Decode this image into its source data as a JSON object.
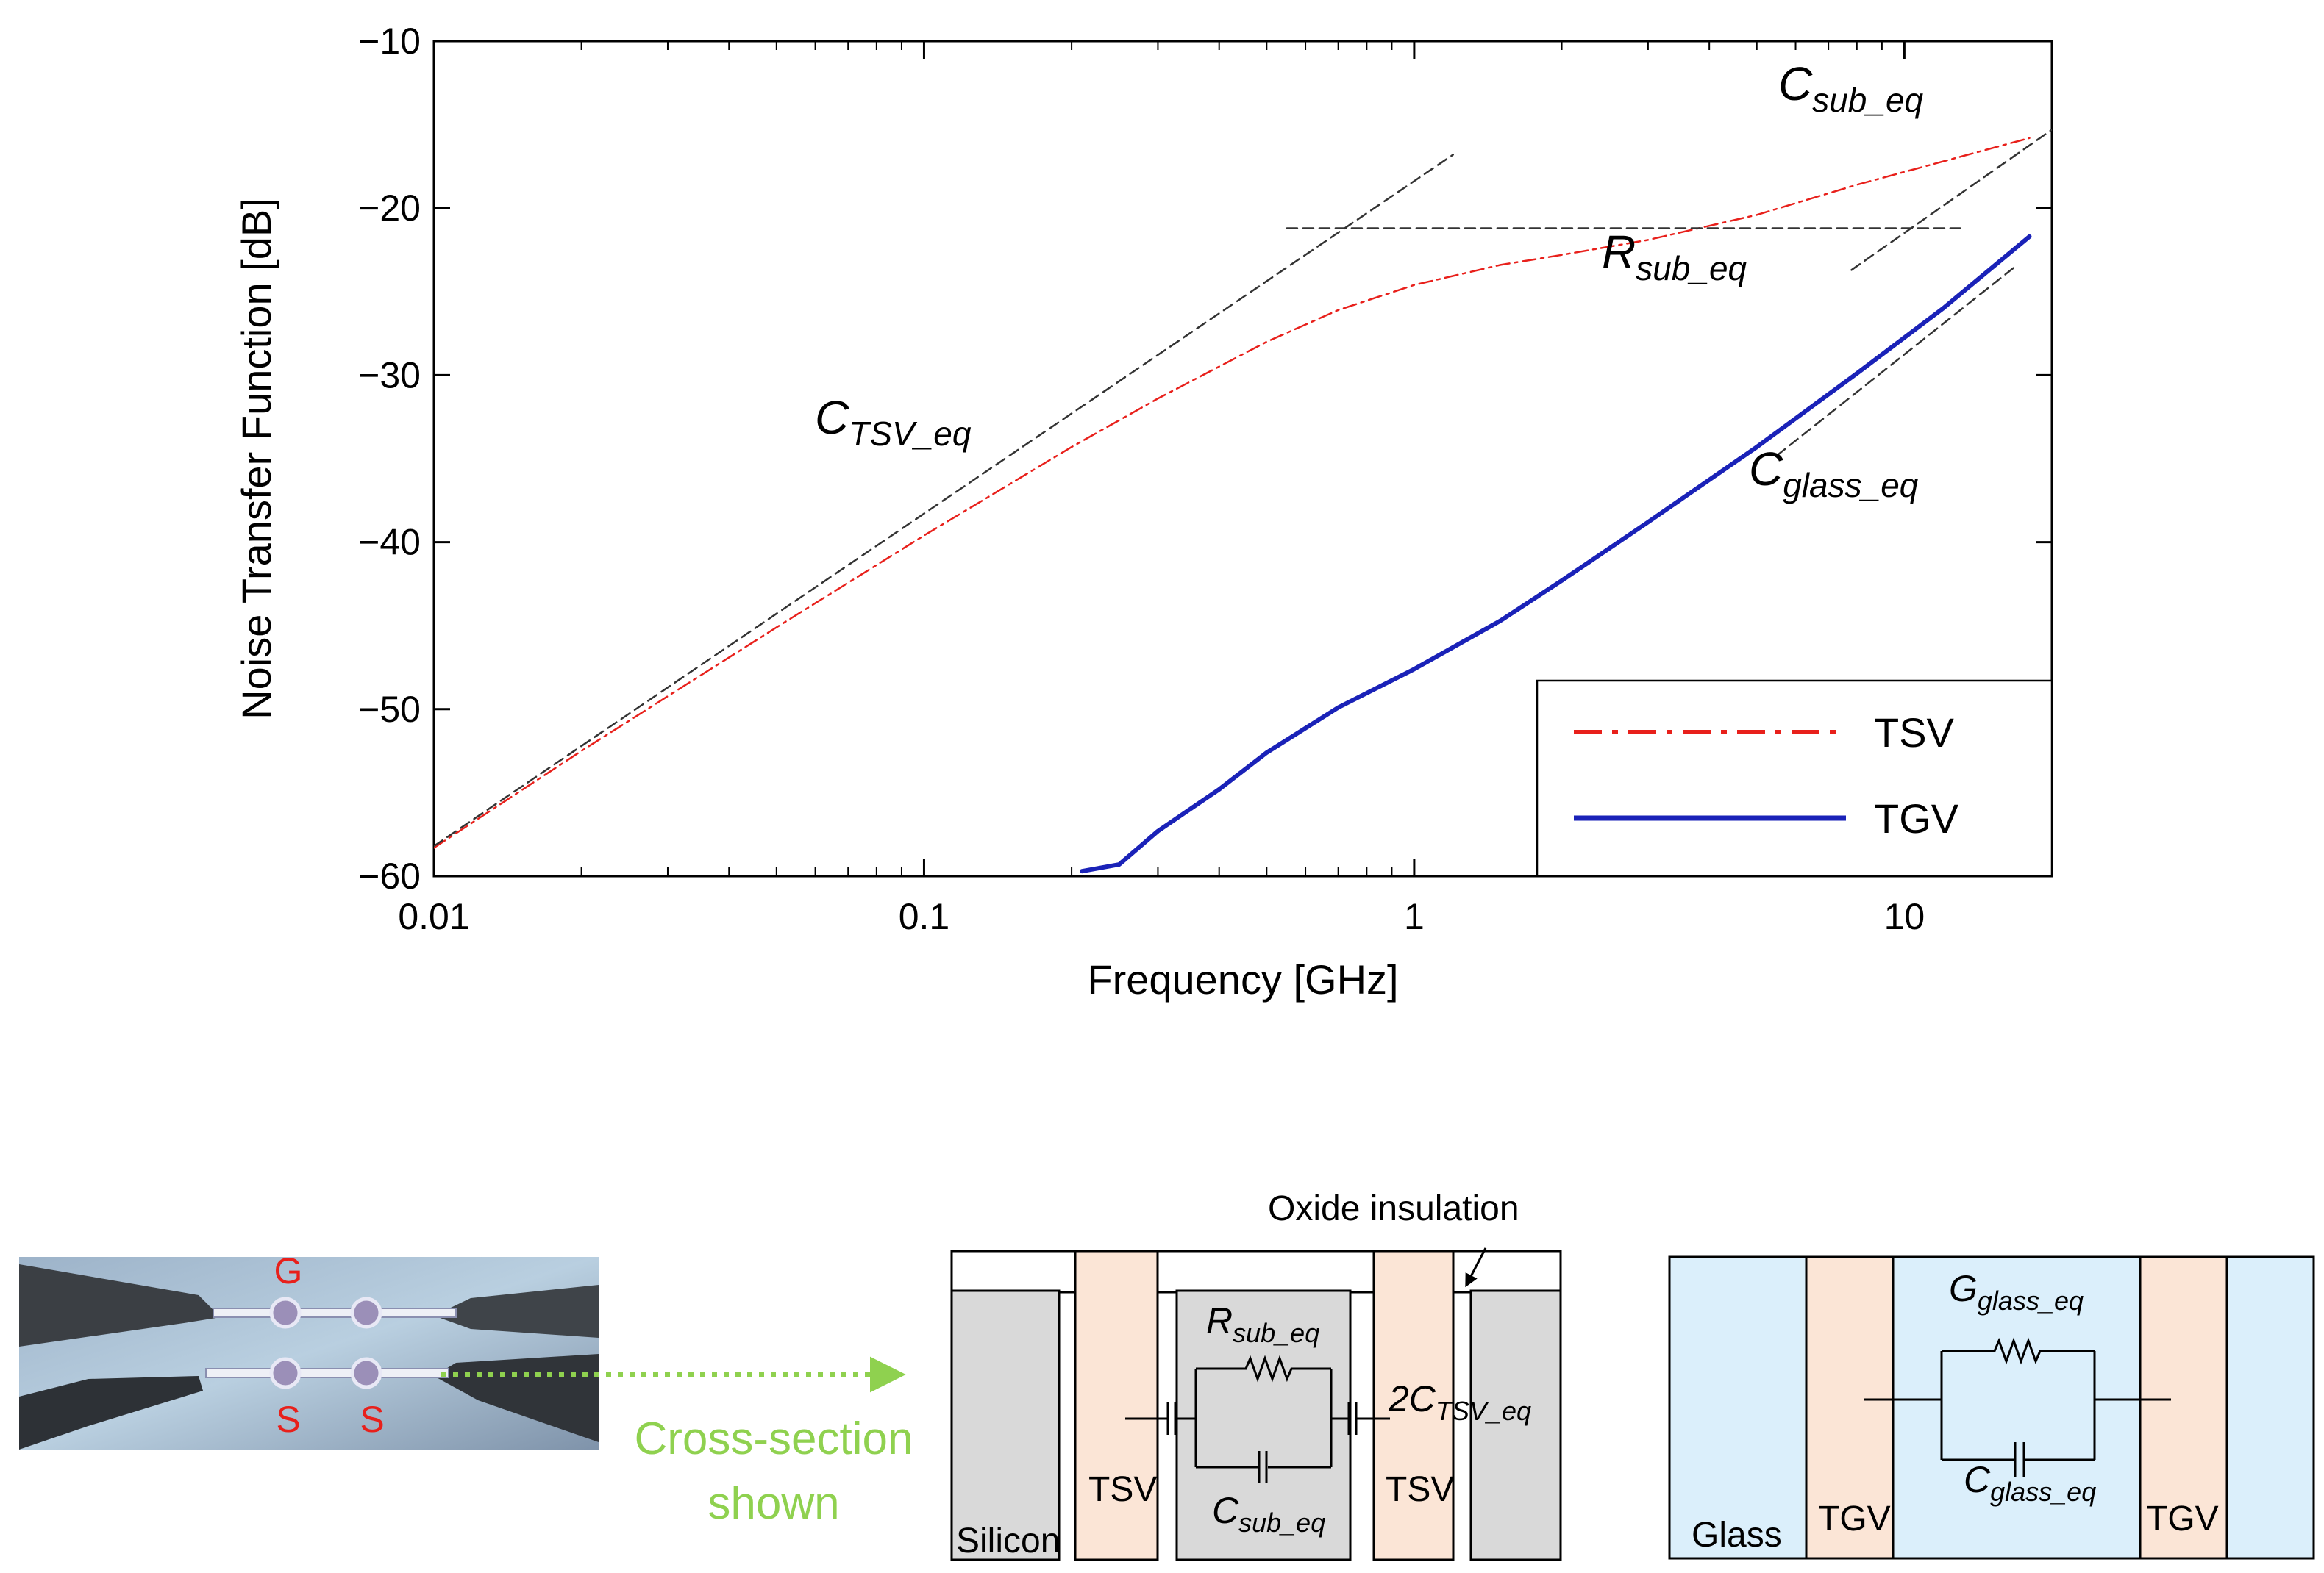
{
  "chart_data": {
    "type": "line",
    "xscale": "log",
    "xlim": [
      0.01,
      20
    ],
    "ylim": [
      -60,
      -10
    ],
    "xlabel": "Frequency [GHz]",
    "ylabel": "Noise Transfer Function  [dB]",
    "xticks": [
      0.01,
      0.1,
      1,
      10
    ],
    "xtick_labels": [
      "0.01",
      "0.1",
      "1",
      "10"
    ],
    "yticks": [
      -10,
      -20,
      -30,
      -40,
      -50,
      -60
    ],
    "ytick_labels": [
      "−10",
      "−20",
      "−30",
      "−40",
      "−50",
      "−60"
    ],
    "legend": {
      "position": "bottom-right",
      "entries": [
        "TSV",
        "TGV"
      ]
    },
    "series": [
      {
        "name": "TSV",
        "style": "dash-dot",
        "color": "#e8201b",
        "x": [
          0.01,
          0.02,
          0.05,
          0.1,
          0.2,
          0.3,
          0.5,
          0.7,
          1,
          1.5,
          2,
          3,
          5,
          8,
          12,
          18
        ],
        "y": [
          -58.3,
          -52.5,
          -45.1,
          -39.6,
          -34.3,
          -31.4,
          -28.0,
          -26.1,
          -24.6,
          -23.4,
          -22.8,
          -21.9,
          -20.4,
          -18.6,
          -17.2,
          -15.8
        ]
      },
      {
        "name": "TGV",
        "style": "solid",
        "color": "#1a22b8",
        "x": [
          0.21,
          0.25,
          0.3,
          0.4,
          0.5,
          0.7,
          1,
          1.5,
          2,
          3,
          5,
          8,
          12,
          18
        ],
        "y": [
          -59.7,
          -59.3,
          -57.3,
          -54.8,
          -52.6,
          -49.9,
          -47.6,
          -44.7,
          -42.3,
          -38.8,
          -34.3,
          -29.9,
          -26.0,
          -21.7
        ]
      },
      {
        "name": "C_TSV_eq asymptote",
        "style": "dashed",
        "color": "#333333",
        "x": [
          0.01,
          1.2
        ],
        "y": [
          -58.2,
          -16.8
        ]
      },
      {
        "name": "R_sub_eq asymptote",
        "style": "dashed",
        "color": "#333333",
        "x": [
          0.55,
          13
        ],
        "y": [
          -21.2,
          -21.2
        ]
      },
      {
        "name": "C_sub_eq asymptote",
        "style": "dashed",
        "color": "#333333",
        "x": [
          7.8,
          20
        ],
        "y": [
          -23.7,
          -15.3
        ]
      },
      {
        "name": "C_glass_eq asymptote",
        "style": "dashed",
        "color": "#333333",
        "x": [
          5.5,
          17
        ],
        "y": [
          -34.8,
          -23.4
        ]
      }
    ],
    "annotations": [
      {
        "main": "C",
        "sub": "TSV_eq"
      },
      {
        "main": "R",
        "sub": "sub_eq"
      },
      {
        "main": "C",
        "sub": "sub_eq"
      },
      {
        "main": "C",
        "sub": "glass_eq"
      }
    ]
  },
  "photo": {
    "labels": {
      "g": "G",
      "s1": "S",
      "s2": "S"
    },
    "arrow_caption_line1": "Cross-section",
    "arrow_caption_line2": "shown",
    "colors": {
      "label": "#e8201b",
      "arrow": "#8fd14f"
    }
  },
  "tsv_diagram": {
    "oxide_label": "Oxide insulation",
    "silicon_label": "Silicon",
    "tsv_left_label": "TSV",
    "tsv_right_label": "TSV",
    "r_main": "R",
    "r_sub": "sub_eq",
    "c_main": "C",
    "c_sub": "sub_eq",
    "ctsv_main": "2C",
    "ctsv_sub": "TSV_eq",
    "colors": {
      "via": "#fbe5d6",
      "silicon": "#d9d9d9"
    }
  },
  "tgv_diagram": {
    "glass_label": "Glass",
    "tgv_left_label": "TGV",
    "tgv_right_label": "TGV",
    "g_main": "G",
    "g_sub": "glass_eq",
    "c_main": "C",
    "c_sub": "glass_eq",
    "colors": {
      "via": "#fbe5d6",
      "glass": "#dbeffb"
    }
  }
}
